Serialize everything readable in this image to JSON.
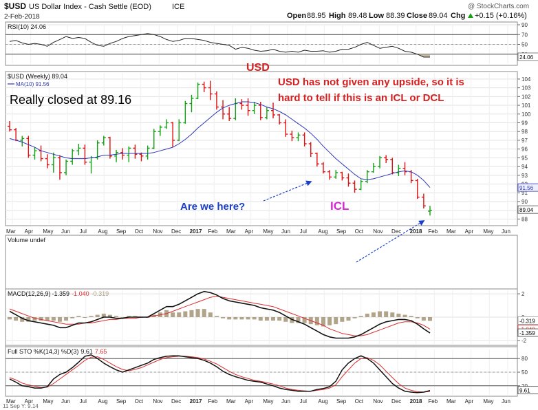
{
  "header": {
    "symbol": "$USD",
    "name": "US Dollar Index - Cash Settle (EOD)",
    "exchange": "ICE",
    "date": "2-Feb-2018",
    "watermark": "@ StockCharts.com",
    "quote": {
      "open_label": "Open",
      "open": "88.95",
      "high_label": "High",
      "high": "89.48",
      "low_label": "Low",
      "low": "88.39",
      "close_label": "Close",
      "close": "89.04",
      "chg_label": "Chg",
      "chg": "+0.15 (+0.16%)",
      "chg_arrow_color": "#16a016"
    }
  },
  "colors": {
    "up_bar": "#11a011",
    "down_bar": "#dd1111",
    "ma": "#2c36b8",
    "annotation_red": "#d42020",
    "annotation_blue": "#1a3ec8",
    "annotation_magenta": "#d428d4",
    "macd_signal": "#dc2d2d",
    "histogram": "#a89a7c",
    "rsi_fill": "#b9ad91"
  },
  "chart_data": [
    {
      "type": "line",
      "panel": "rsi",
      "title": "RSI(10) 24.06",
      "series": [
        {
          "name": "RSI(10)",
          "values": [
            56,
            58,
            53,
            50,
            52,
            50,
            46,
            54,
            60,
            66,
            62,
            64,
            62,
            54,
            48,
            46,
            52,
            56,
            62,
            66,
            68,
            70,
            72,
            70,
            66,
            60,
            56,
            58,
            62,
            62,
            60,
            58,
            54,
            52,
            50,
            48,
            40,
            44,
            42,
            38,
            36,
            37,
            40,
            36,
            34,
            36,
            34,
            38,
            36,
            36,
            37,
            34,
            36,
            40,
            40,
            44,
            50,
            54,
            48,
            42,
            44,
            46,
            42,
            36,
            34,
            30,
            24,
            24
          ]
        }
      ],
      "ylim": [
        10,
        90
      ],
      "yticks": [
        30,
        50,
        70,
        90
      ],
      "reference_lines": [
        30,
        70
      ],
      "last_label": "24.06"
    },
    {
      "type": "bar",
      "panel": "price",
      "style": "ohlc",
      "title": "$USD (Weekly) 89.04",
      "legend": [
        {
          "name": "MA(10) 91.56"
        }
      ],
      "ohlc": [
        [
          98.6,
          99.2,
          98.0,
          98.2
        ],
        [
          98.2,
          98.4,
          96.9,
          97.0
        ],
        [
          97.0,
          97.5,
          96.3,
          97.2
        ],
        [
          97.2,
          97.5,
          95.0,
          95.3
        ],
        [
          95.3,
          96.2,
          94.8,
          95.8
        ],
        [
          95.8,
          96.4,
          94.6,
          94.9
        ],
        [
          94.9,
          95.4,
          93.8,
          94.2
        ],
        [
          94.2,
          95.6,
          93.3,
          95.0
        ],
        [
          95.0,
          95.3,
          92.5,
          93.3
        ],
        [
          93.3,
          94.8,
          93.0,
          94.6
        ],
        [
          94.6,
          96.0,
          94.2,
          95.8
        ],
        [
          95.8,
          96.6,
          95.3,
          96.1
        ],
        [
          96.1,
          96.5,
          94.2,
          94.5
        ],
        [
          94.5,
          95.2,
          93.2,
          95.0
        ],
        [
          95.0,
          97.0,
          94.8,
          96.7
        ],
        [
          96.7,
          97.5,
          96.4,
          97.3
        ],
        [
          97.3,
          97.4,
          94.9,
          95.2
        ],
        [
          95.2,
          95.9,
          94.5,
          95.6
        ],
        [
          95.6,
          96.1,
          94.8,
          95.3
        ],
        [
          95.3,
          96.3,
          94.5,
          96.1
        ],
        [
          96.1,
          96.5,
          94.9,
          95.4
        ],
        [
          95.4,
          95.6,
          94.6,
          95.2
        ],
        [
          95.2,
          96.4,
          94.8,
          96.1
        ],
        [
          96.1,
          98.3,
          96.0,
          98.0
        ],
        [
          98.0,
          98.7,
          97.5,
          98.5
        ],
        [
          98.5,
          99.4,
          98.3,
          99.0
        ],
        [
          99.0,
          99.1,
          96.2,
          97.0
        ],
        [
          97.0,
          99.4,
          96.9,
          99.0
        ],
        [
          99.0,
          101.5,
          98.9,
          101.2
        ],
        [
          101.2,
          102.2,
          100.2,
          101.8
        ],
        [
          101.8,
          103.6,
          101.7,
          103.4
        ],
        [
          103.4,
          103.7,
          102.5,
          103.0
        ],
        [
          103.0,
          103.8,
          101.6,
          102.3
        ],
        [
          102.3,
          102.6,
          100.5,
          100.8
        ],
        [
          100.8,
          101.6,
          99.4,
          100.0
        ],
        [
          100.0,
          100.8,
          99.2,
          99.5
        ],
        [
          99.5,
          101.8,
          99.3,
          101.2
        ],
        [
          101.2,
          101.7,
          100.5,
          101.0
        ],
        [
          101.0,
          101.8,
          99.8,
          100.4
        ],
        [
          100.4,
          101.4,
          100.0,
          101.0
        ],
        [
          101.0,
          101.4,
          99.3,
          99.6
        ],
        [
          99.6,
          100.8,
          99.4,
          100.4
        ],
        [
          100.4,
          101.3,
          99.5,
          99.9
        ],
        [
          99.9,
          100.0,
          98.8,
          99.0
        ],
        [
          99.0,
          99.4,
          97.4,
          97.7
        ],
        [
          97.7,
          98.1,
          96.9,
          97.3
        ],
        [
          97.3,
          97.9,
          96.9,
          97.6
        ],
        [
          97.6,
          97.9,
          96.3,
          96.6
        ],
        [
          96.6,
          96.8,
          95.1,
          95.5
        ],
        [
          95.5,
          95.6,
          94.0,
          94.3
        ],
        [
          94.3,
          94.5,
          93.2,
          93.4
        ],
        [
          93.4,
          93.6,
          92.5,
          92.8
        ],
        [
          92.8,
          93.6,
          92.6,
          93.3
        ],
        [
          93.3,
          93.4,
          92.4,
          92.7
        ],
        [
          92.7,
          93.2,
          91.7,
          92.1
        ],
        [
          92.1,
          92.4,
          91.0,
          91.4
        ],
        [
          91.4,
          92.5,
          91.3,
          92.3
        ],
        [
          92.3,
          93.6,
          92.1,
          93.4
        ],
        [
          93.4,
          94.4,
          93.3,
          94.0
        ],
        [
          94.0,
          95.2,
          93.8,
          95.0
        ],
        [
          95.0,
          95.3,
          94.4,
          94.8
        ],
        [
          94.8,
          95.0,
          93.1,
          93.3
        ],
        [
          93.3,
          94.2,
          92.9,
          93.8
        ],
        [
          93.8,
          94.5,
          93.0,
          93.4
        ],
        [
          93.4,
          93.6,
          92.1,
          92.4
        ],
        [
          92.4,
          92.6,
          90.3,
          90.5
        ],
        [
          90.5,
          90.9,
          89.2,
          89.5
        ],
        [
          88.9,
          89.5,
          88.4,
          89.0
        ]
      ],
      "ma10": [
        97.2,
        97.0,
        96.8,
        96.5,
        96.2,
        95.8,
        95.6,
        95.4,
        95.2,
        95.0,
        94.9,
        94.9,
        94.9,
        95.0,
        95.1,
        95.3,
        95.3,
        95.4,
        95.5,
        95.5,
        95.5,
        95.5,
        95.5,
        95.6,
        95.8,
        96.0,
        96.2,
        96.6,
        97.1,
        97.7,
        98.4,
        99.0,
        99.6,
        100.2,
        100.7,
        101.0,
        101.2,
        101.4,
        101.4,
        101.3,
        101.1,
        100.8,
        100.6,
        100.3,
        99.9,
        99.4,
        98.9,
        98.4,
        97.8,
        97.1,
        96.3,
        95.6,
        94.9,
        94.3,
        93.7,
        93.1,
        92.6,
        92.5,
        92.6,
        92.8,
        93.0,
        93.2,
        93.4,
        93.5,
        93.4,
        93.0,
        92.4,
        91.6
      ],
      "ylim": [
        87.4,
        104.7
      ],
      "yticks": [
        88,
        89,
        90,
        91,
        92,
        93,
        94,
        95,
        96,
        97,
        98,
        99,
        100,
        101,
        102,
        103,
        104
      ],
      "last_labels": [
        "91.56",
        "89.04"
      ],
      "months": [
        "Mar",
        "Apr",
        "May",
        "Jun",
        "Jul",
        "Aug",
        "Sep",
        "Oct",
        "Nov",
        "Dec",
        "2017",
        "Feb",
        "Mar",
        "Apr",
        "May",
        "Jun",
        "Jul",
        "Aug",
        "Sep",
        "Oct",
        "Nov",
        "Dec",
        "2018",
        "Feb",
        "Mar",
        "Apr",
        "May",
        "Jun"
      ]
    },
    {
      "type": "bar",
      "panel": "volume",
      "title": "Volume undef",
      "values": []
    },
    {
      "type": "line",
      "panel": "macd",
      "title": "MACD(12,26,9)",
      "title_values": [
        "-1.359",
        "-1.040",
        "-0.319"
      ],
      "series": [
        {
          "name": "MACD",
          "values": [
            0.5,
            0.2,
            -0.1,
            -0.3,
            -0.4,
            -0.5,
            -0.6,
            -0.7,
            -0.9,
            -0.9,
            -0.7,
            -0.5,
            -0.5,
            -0.4,
            -0.2,
            0.0,
            0.0,
            -0.1,
            -0.1,
            0.0,
            0.0,
            0.0,
            0.0,
            0.3,
            0.6,
            0.9,
            0.9,
            1.1,
            1.4,
            1.7,
            2.0,
            2.2,
            2.1,
            1.9,
            1.6,
            1.4,
            1.3,
            1.2,
            1.1,
            1.0,
            0.8,
            0.7,
            0.6,
            0.4,
            0.1,
            -0.2,
            -0.4,
            -0.6,
            -0.9,
            -1.2,
            -1.5,
            -1.7,
            -1.8,
            -1.8,
            -1.8,
            -1.7,
            -1.5,
            -1.2,
            -0.9,
            -0.6,
            -0.4,
            -0.3,
            -0.2,
            -0.2,
            -0.3,
            -0.6,
            -1.0,
            -1.36
          ]
        },
        {
          "name": "Signal",
          "values": [
            0.7,
            0.5,
            0.3,
            0.1,
            -0.1,
            -0.2,
            -0.3,
            -0.4,
            -0.5,
            -0.6,
            -0.6,
            -0.6,
            -0.5,
            -0.5,
            -0.4,
            -0.3,
            -0.2,
            -0.2,
            -0.1,
            -0.1,
            -0.1,
            0.0,
            0.0,
            0.1,
            0.2,
            0.3,
            0.5,
            0.7,
            0.9,
            1.1,
            1.3,
            1.5,
            1.7,
            1.8,
            1.7,
            1.6,
            1.5,
            1.4,
            1.3,
            1.2,
            1.1,
            1.0,
            0.9,
            0.7,
            0.5,
            0.3,
            0.1,
            -0.1,
            -0.3,
            -0.5,
            -0.7,
            -1.0,
            -1.2,
            -1.4,
            -1.5,
            -1.6,
            -1.6,
            -1.5,
            -1.3,
            -1.1,
            -0.9,
            -0.7,
            -0.5,
            -0.4,
            -0.4,
            -0.5,
            -0.7,
            -1.04
          ]
        }
      ],
      "ylim": [
        -2.3,
        2.3
      ],
      "yticks": [
        -2,
        0,
        2
      ],
      "last_labels": [
        "-0.319",
        "-1.040",
        "-1.359"
      ]
    },
    {
      "type": "line",
      "panel": "sto",
      "title": "Full STO %K(14,3) %D(3)",
      "title_values": [
        "9.61",
        "7.65"
      ],
      "series": [
        {
          "name": "%K",
          "values": [
            35,
            28,
            20,
            18,
            15,
            15,
            18,
            35,
            45,
            50,
            60,
            72,
            85,
            88,
            80,
            70,
            62,
            55,
            50,
            55,
            60,
            65,
            70,
            78,
            82,
            85,
            86,
            86,
            84,
            82,
            80,
            76,
            70,
            62,
            52,
            45,
            40,
            36,
            32,
            30,
            28,
            24,
            20,
            15,
            12,
            10,
            8,
            8,
            8,
            12,
            14,
            18,
            30,
            55,
            70,
            80,
            86,
            80,
            70,
            55,
            40,
            25,
            15,
            8,
            6,
            5,
            6,
            9.61
          ]
        },
        {
          "name": "%D",
          "values": [
            38,
            33,
            26,
            22,
            19,
            16,
            17,
            25,
            35,
            45,
            55,
            65,
            76,
            83,
            84,
            78,
            70,
            62,
            56,
            53,
            56,
            60,
            66,
            72,
            78,
            82,
            84,
            85,
            85,
            84,
            82,
            79,
            74,
            68,
            60,
            52,
            45,
            40,
            36,
            32,
            30,
            27,
            24,
            20,
            15,
            12,
            10,
            9,
            8,
            10,
            12,
            15,
            22,
            40,
            55,
            70,
            80,
            82,
            76,
            66,
            52,
            38,
            25,
            15,
            10,
            7,
            6,
            7.65
          ]
        }
      ],
      "ylim": [
        0,
        100
      ],
      "yticks": [
        20,
        50,
        80
      ],
      "reference_lines": [
        20,
        80
      ],
      "last_label": "9.61"
    }
  ],
  "annotations": {
    "closed_note": "Really closed at 89.16",
    "usd_label": "USD",
    "comment": [
      "USD has not given any upside, so it is",
      "hard to tell if this is an  ICL or DCL"
    ],
    "question": "Are we here?",
    "icl_label": "ICL"
  },
  "footer": {
    "hover_label": "11 Sep Y: 9.14"
  }
}
